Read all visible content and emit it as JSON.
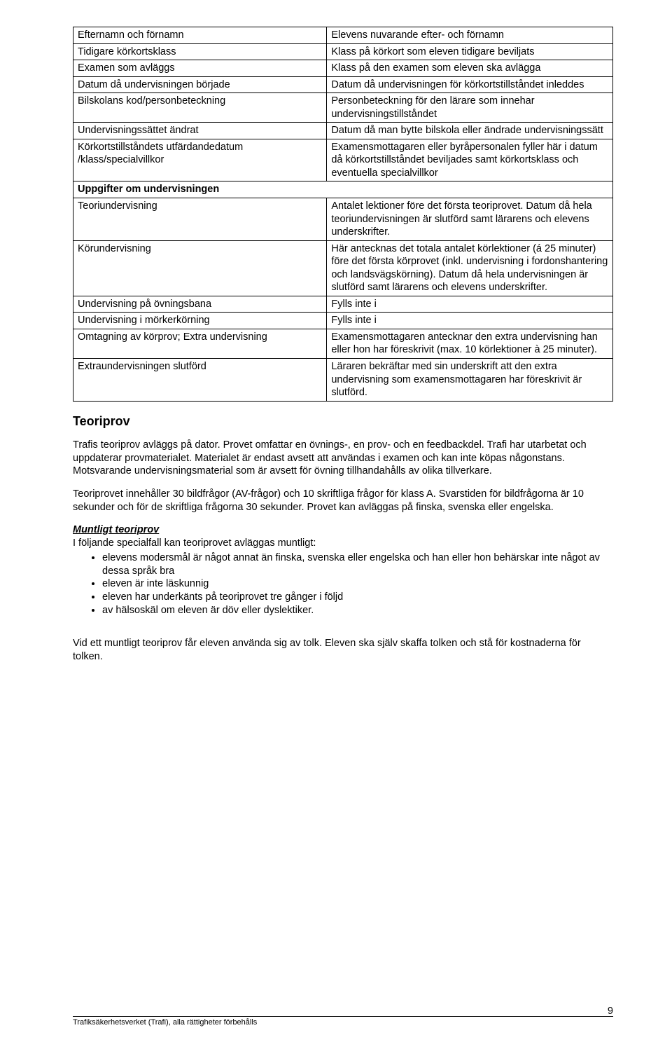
{
  "colors": {
    "text": "#000000",
    "background": "#ffffff",
    "border": "#000000"
  },
  "typography": {
    "body_fontsize_pt": 11,
    "heading_fontsize_pt": 14,
    "footer_fontsize_pt": 8,
    "font_family": "Arial"
  },
  "table": {
    "header_row_label": "Uppgifter om undervisningen",
    "rows": [
      {
        "l": "Efternamn och förnamn",
        "r": "Elevens nuvarande efter- och förnamn"
      },
      {
        "l": "Tidigare körkortsklass",
        "r": "Klass på körkort som eleven tidigare beviljats"
      },
      {
        "l": "Examen som avläggs",
        "r": "Klass på den examen som eleven ska avlägga"
      },
      {
        "l": "Datum då undervisningen började",
        "r": "Datum då undervisningen för körkortstillståndet inleddes"
      },
      {
        "l": "Bilskolans kod/personbeteckning",
        "r": "Personbeteckning för den lärare som innehar undervisningstillståndet"
      },
      {
        "l": "Undervisningssättet ändrat",
        "r": "Datum då man bytte bilskola eller ändrade undervisningssätt"
      },
      {
        "l": "Körkortstillståndets utfärdandedatum /klass/specialvillkor",
        "r": "Examensmottagaren eller byråpersonalen fyller här i datum då körkortstillståndet beviljades samt körkortsklass och eventuella specialvillkor"
      },
      {
        "span": true,
        "l": "Uppgifter om undervisningen"
      },
      {
        "l": "Teoriundervisning",
        "r": "Antalet lektioner före det första teoriprovet. Datum då hela teoriundervisningen är slutförd samt lärarens och elevens underskrifter."
      },
      {
        "l": "Körundervisning",
        "r": "Här antecknas det totala antalet körlektioner (á 25 minuter) före det första körprovet (inkl. undervisning i fordonshantering och landsvägskörning). Datum då hela undervisningen är slutförd samt lärarens och elevens underskrifter."
      },
      {
        "l": "Undervisning på övningsbana",
        "r": "Fylls inte i"
      },
      {
        "l": "Undervisning i mörkerkörning",
        "r": "Fylls inte i"
      },
      {
        "l": "Omtagning av körprov; Extra undervisning",
        "r": "Examensmottagaren antecknar den extra undervisning han eller hon har föreskrivit (max. 10 körlektioner à 25 minuter)."
      },
      {
        "l": "Extraundervisningen slutförd",
        "r": "Läraren bekräftar med sin underskrift att den extra undervisning som examensmottagaren har föreskrivit är slutförd."
      }
    ]
  },
  "heading_teoriprov": "Teoriprov",
  "para1": "Trafis teoriprov avläggs på dator. Provet omfattar en övnings-, en prov- och en feedbackdel. Trafi har utarbetat och uppdaterar provmaterialet. Materialet är endast avsett att användas i examen och kan inte köpas någonstans. Motsvarande undervisningsmaterial som är avsett för övning tillhandahålls av olika tillverkare.",
  "para2": "Teoriprovet innehåller 30 bildfrågor (AV-frågor) och 10 skriftliga frågor för klass A. Svarstiden för bildfrågorna är 10 sekunder och för de skriftliga frågorna 30 sekunder. Provet kan avläggas på finska, svenska eller engelska.",
  "subheading_muntligt": "Muntligt teoriprov",
  "muntligt_intro": "I följande specialfall kan teoriprovet avläggas muntligt:",
  "bullets": [
    "elevens modersmål är något annat än finska, svenska eller engelska och han eller hon behärskar inte något av dessa språk bra",
    "eleven är inte läskunnig",
    "eleven har underkänts på teoriprovet tre gånger i följd",
    "av hälsoskäl om eleven är döv eller dyslektiker."
  ],
  "para_tolk": "Vid ett muntligt teoriprov får eleven använda sig av tolk. Eleven ska själv skaffa tolken och stå för kostnaderna för tolken.",
  "footer_text": "Trafiksäkerhetsverket (Trafi), alla rättigheter förbehålls",
  "page_number": "9"
}
